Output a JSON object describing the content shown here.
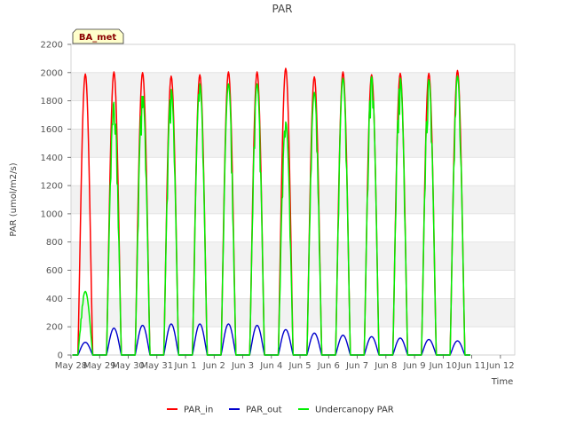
{
  "chart_data": {
    "type": "line",
    "title": "PAR",
    "xlabel": "Time",
    "ylabel": "PAR (umol/m2/s)",
    "site_label": "BA_met",
    "ylim": [
      0,
      2200
    ],
    "yticks": [
      0,
      200,
      400,
      600,
      800,
      1000,
      1200,
      1400,
      1600,
      1800,
      2000,
      2200
    ],
    "xlim": [
      0,
      15.5
    ],
    "xticks": [
      {
        "x": 0,
        "label": "May 28"
      },
      {
        "x": 1,
        "label": "May 29"
      },
      {
        "x": 2,
        "label": "May 30"
      },
      {
        "x": 3,
        "label": "May 31"
      },
      {
        "x": 4,
        "label": "Jun 1"
      },
      {
        "x": 5,
        "label": "Jun 2"
      },
      {
        "x": 6,
        "label": "Jun 3"
      },
      {
        "x": 7,
        "label": "Jun 4"
      },
      {
        "x": 8,
        "label": "Jun 5"
      },
      {
        "x": 9,
        "label": "Jun 6"
      },
      {
        "x": 10,
        "label": "Jun 7"
      },
      {
        "x": 11,
        "label": "Jun 8"
      },
      {
        "x": 12,
        "label": "Jun 9"
      },
      {
        "x": 13,
        "label": "Jun 10"
      },
      {
        "x": 14,
        "label": "Jun 11"
      },
      {
        "x": 15,
        "label": "Jun 12"
      }
    ],
    "day_offsets": [
      0.5,
      1.5,
      2.5,
      3.5,
      4.5,
      5.5,
      6.5,
      7.5,
      8.5,
      9.5,
      10.5,
      11.5,
      12.5,
      13.5
    ],
    "series": [
      {
        "name": "PAR_in",
        "color": "#ff0000",
        "daily_peaks": [
          1990,
          2005,
          2000,
          1975,
          1985,
          2005,
          2005,
          2030,
          1970,
          2005,
          1985,
          1995,
          1995,
          2015
        ]
      },
      {
        "name": "PAR_out",
        "color": "#0000cc",
        "daily_peaks": [
          90,
          190,
          210,
          220,
          220,
          220,
          210,
          180,
          155,
          140,
          130,
          120,
          110,
          100
        ]
      },
      {
        "name": "Undercanopy PAR",
        "color": "#00ee00",
        "daily_peaks": [
          450,
          1790,
          1850,
          1880,
          1920,
          1920,
          1920,
          1650,
          1860,
          1960,
          1970,
          1960,
          1950,
          1975
        ]
      }
    ]
  }
}
